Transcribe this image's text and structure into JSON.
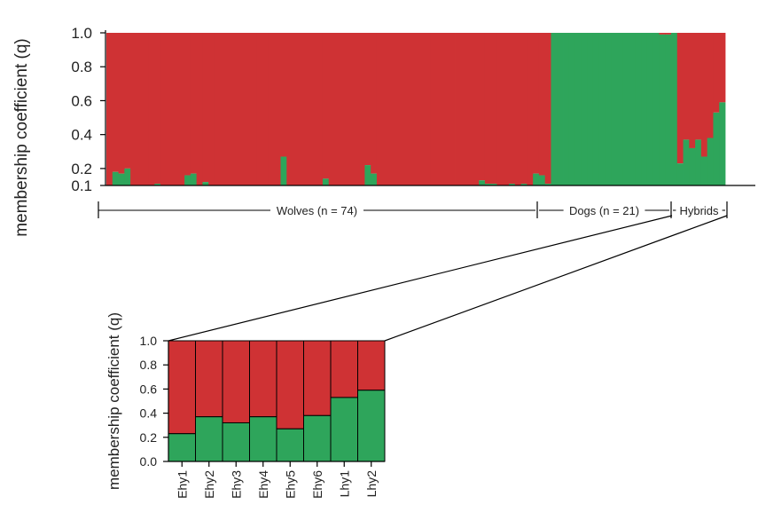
{
  "colors": {
    "wolf": "#cf3234",
    "dog": "#2ea55b",
    "axis": "#000000",
    "text": "#222222"
  },
  "chart_data": [
    {
      "type": "bar",
      "stacked": true,
      "ylabel": "membership coefficient (q)",
      "ylim": [
        0.1,
        1.0
      ],
      "yticks": [
        "0.1",
        "0.2",
        "0.4",
        "0.6",
        "0.8",
        "1.0"
      ],
      "series_colors": [
        "#2ea55b",
        "#cf3234"
      ],
      "groups": [
        {
          "label": "Wolves (n = 74)",
          "n": 74
        },
        {
          "label": "Dogs (n = 21)",
          "n": 21
        },
        {
          "label": "Hybrids",
          "n": 8
        }
      ],
      "green_values": [
        0.1,
        0.18,
        0.17,
        0.2,
        0.1,
        0.1,
        0.1,
        0.1,
        0.11,
        0.1,
        0.1,
        0.1,
        0.1,
        0.16,
        0.17,
        0.1,
        0.12,
        0.1,
        0.1,
        0.1,
        0.1,
        0.1,
        0.1,
        0.1,
        0.1,
        0.1,
        0.1,
        0.1,
        0.1,
        0.27,
        0.1,
        0.1,
        0.1,
        0.1,
        0.1,
        0.1,
        0.14,
        0.1,
        0.1,
        0.1,
        0.1,
        0.1,
        0.1,
        0.22,
        0.17,
        0.1,
        0.1,
        0.1,
        0.1,
        0.1,
        0.1,
        0.1,
        0.1,
        0.1,
        0.1,
        0.1,
        0.1,
        0.1,
        0.1,
        0.1,
        0.1,
        0.1,
        0.13,
        0.11,
        0.11,
        0.1,
        0.1,
        0.11,
        0.1,
        0.11,
        0.1,
        0.17,
        0.16,
        0.11,
        1.0,
        1.0,
        1.0,
        1.0,
        1.0,
        1.0,
        1.0,
        1.0,
        1.0,
        1.0,
        1.0,
        1.0,
        1.0,
        1.0,
        1.0,
        1.0,
        1.0,
        1.0,
        0.99,
        0.99,
        1.0,
        0.23,
        0.37,
        0.32,
        0.37,
        0.27,
        0.38,
        0.53,
        0.59
      ]
    },
    {
      "type": "bar",
      "stacked": true,
      "ylabel": "membership coefficient (q)",
      "ylim": [
        0.0,
        1.0
      ],
      "yticks": [
        "0.0",
        "0.2",
        "0.4",
        "0.6",
        "0.8",
        "1.0"
      ],
      "categories": [
        "Ehy1",
        "Ehy2",
        "Ehy3",
        "Ehy4",
        "Ehy5",
        "Ehy6",
        "Lhy1",
        "Lhy2"
      ],
      "series_colors": [
        "#2ea55b",
        "#cf3234"
      ],
      "green_values": [
        0.23,
        0.37,
        0.32,
        0.37,
        0.27,
        0.38,
        0.53,
        0.59
      ]
    }
  ]
}
